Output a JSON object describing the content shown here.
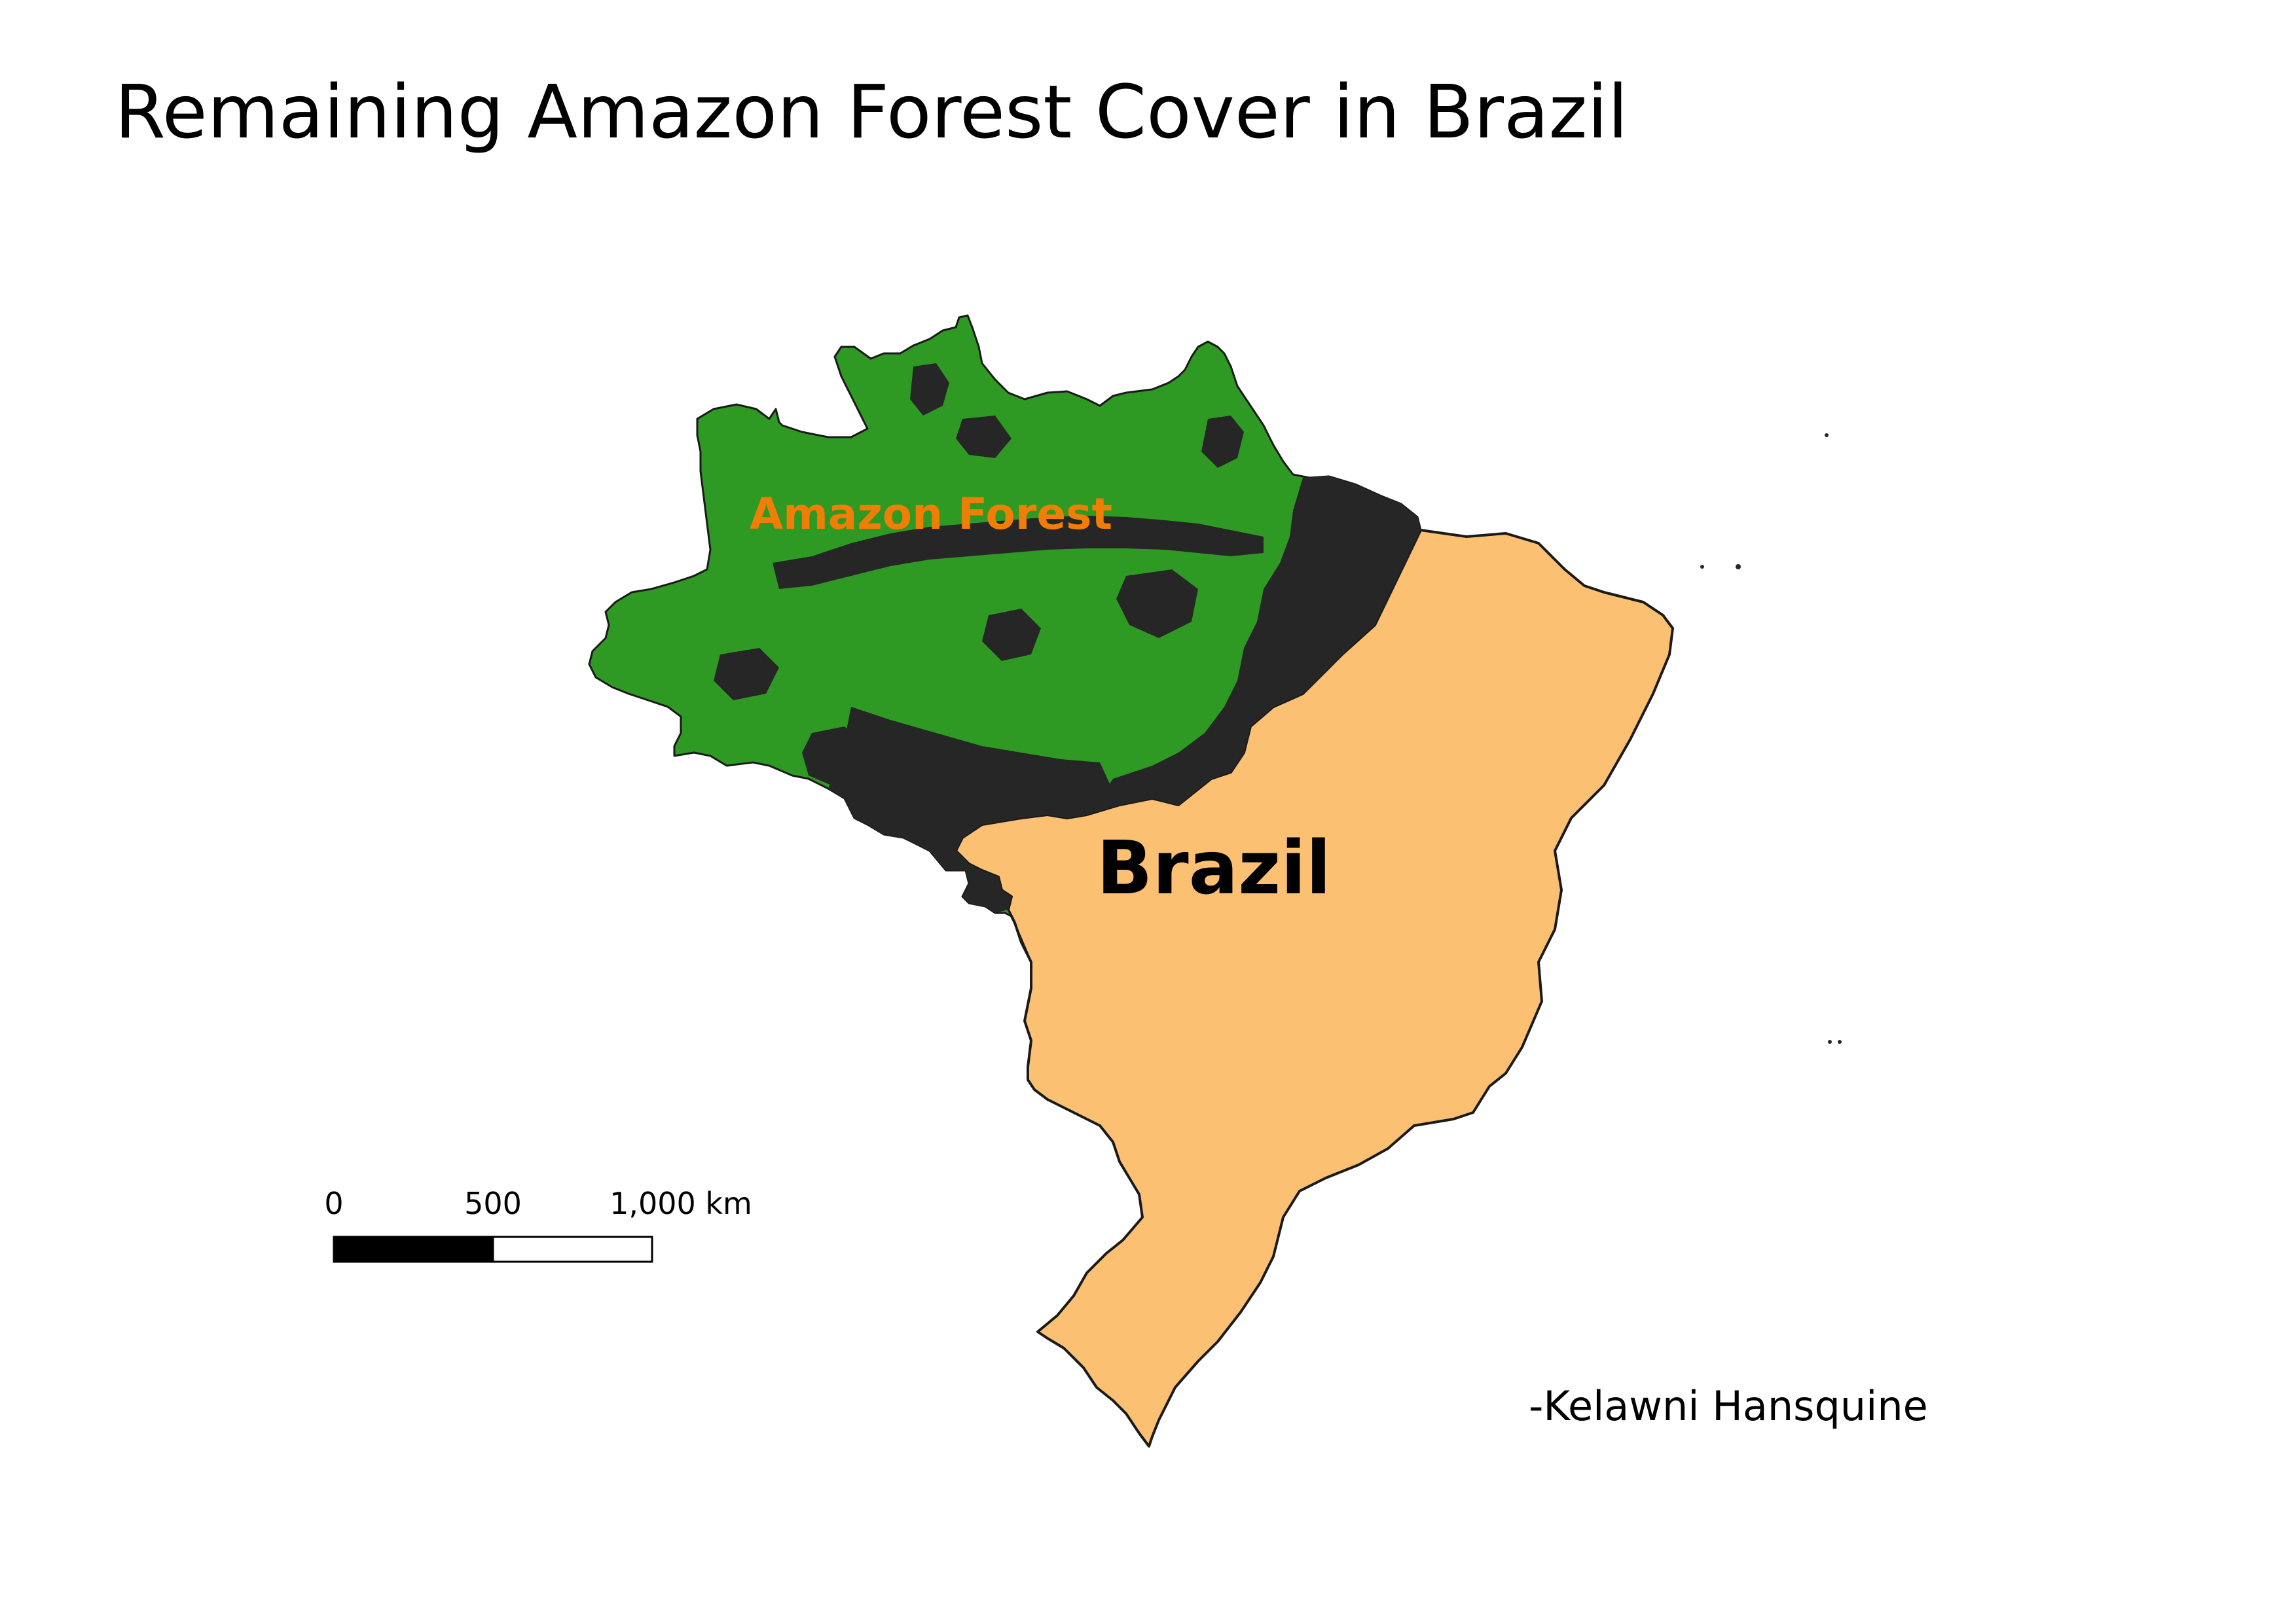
{
  "map": {
    "title": "Remaining Amazon Forest Cover in Brazil",
    "amazon_label": "Amazon Forest",
    "country_label": "Brazil",
    "author": "-Kelawni Hansquine"
  },
  "scale_bar": {
    "labels": [
      "0",
      "500",
      "1,000 km"
    ]
  },
  "colors": {
    "forest_green": "#2f9a23",
    "deforested_dark": "#262626",
    "brazil_fill": "#fcc073",
    "amazon_label_color": "#f07d05",
    "outline": "#1a1a1a"
  }
}
